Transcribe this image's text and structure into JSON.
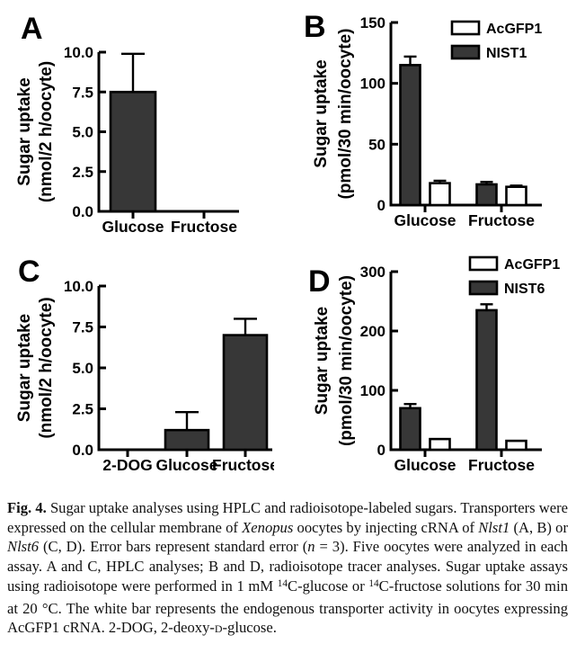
{
  "colors": {
    "bar_dark": "#373737",
    "bar_white": "#ffffff",
    "ink": "#000000"
  },
  "chart_data": [
    {
      "panel": "A",
      "type": "bar",
      "ylabel": [
        "Sugar uptake",
        "(nmol/2 h/oocyte)"
      ],
      "ylim": [
        0,
        10
      ],
      "yticks": [
        {
          "v": 0,
          "label": "0.0"
        },
        {
          "v": 2.5,
          "label": "2.5"
        },
        {
          "v": 5,
          "label": "5.0"
        },
        {
          "v": 7.5,
          "label": "7.5"
        },
        {
          "v": 10,
          "label": "10.0"
        }
      ],
      "categories": [
        "Glucose",
        "Fructose"
      ],
      "series": [
        {
          "name": "",
          "fill": "dark",
          "values": [
            7.5,
            0
          ],
          "errors": [
            2.4,
            0
          ]
        }
      ],
      "legend": null
    },
    {
      "panel": "B",
      "type": "bar",
      "ylabel": [
        "Sugar uptake",
        "(pmol/30 min/oocyte)"
      ],
      "ylim": [
        0,
        150
      ],
      "yticks": [
        {
          "v": 0,
          "label": "0"
        },
        {
          "v": 50,
          "label": "50"
        },
        {
          "v": 100,
          "label": "100"
        },
        {
          "v": 150,
          "label": "150"
        }
      ],
      "categories": [
        "Glucose",
        "Fructose"
      ],
      "series": [
        {
          "name": "NIST1",
          "fill": "dark",
          "values": [
            115,
            17
          ],
          "errors": [
            7,
            2
          ]
        },
        {
          "name": "AcGFP1",
          "fill": "white",
          "values": [
            18,
            15
          ],
          "errors": [
            2,
            1
          ]
        }
      ],
      "legend": [
        {
          "label": "AcGFP1",
          "fill": "white"
        },
        {
          "label": "NIST1",
          "fill": "dark"
        }
      ]
    },
    {
      "panel": "C",
      "type": "bar",
      "ylabel": [
        "Sugar uptake",
        "(nmol/2 h/oocyte)"
      ],
      "ylim": [
        0,
        10
      ],
      "yticks": [
        {
          "v": 0,
          "label": "0.0"
        },
        {
          "v": 2.5,
          "label": "2.5"
        },
        {
          "v": 5,
          "label": "5.0"
        },
        {
          "v": 7.5,
          "label": "7.5"
        },
        {
          "v": 10,
          "label": "10.0"
        }
      ],
      "categories": [
        "2-DOG",
        "Glucose",
        "Fructose"
      ],
      "series": [
        {
          "name": "",
          "fill": "dark",
          "values": [
            0,
            1.2,
            7.0
          ],
          "errors": [
            0,
            1.1,
            1.0
          ]
        }
      ],
      "legend": null
    },
    {
      "panel": "D",
      "type": "bar",
      "ylabel": [
        "Sugar uptake",
        "(pmol/30 min/oocyte)"
      ],
      "ylim": [
        0,
        300
      ],
      "yticks": [
        {
          "v": 0,
          "label": "0"
        },
        {
          "v": 100,
          "label": "100"
        },
        {
          "v": 200,
          "label": "200"
        },
        {
          "v": 300,
          "label": "300"
        }
      ],
      "categories": [
        "Glucose",
        "Fructose"
      ],
      "series": [
        {
          "name": "NIST6",
          "fill": "dark",
          "values": [
            70,
            235
          ],
          "errors": [
            7,
            10
          ]
        },
        {
          "name": "AcGFP1",
          "fill": "white",
          "values": [
            18,
            15
          ],
          "errors": [
            0,
            0
          ]
        }
      ],
      "legend": [
        {
          "label": "AcGFP1",
          "fill": "white"
        },
        {
          "label": "NIST6",
          "fill": "dark"
        }
      ]
    }
  ],
  "caption": {
    "segments": [
      {
        "text": "Fig. 4.",
        "style": "b"
      },
      {
        "text": " Sugar uptake analyses using HPLC and radioisotope-labeled sugars. Transporters were expressed on the cellular membrane of ",
        "style": ""
      },
      {
        "text": "Xenopus",
        "style": "i"
      },
      {
        "text": " oocytes by injecting cRNA of ",
        "style": ""
      },
      {
        "text": "Nlst1",
        "style": "i"
      },
      {
        "text": " (A, B) or ",
        "style": ""
      },
      {
        "text": "Nlst6",
        "style": "i"
      },
      {
        "text": " (C, D). Error bars represent standard error (",
        "style": ""
      },
      {
        "text": "n",
        "style": "i"
      },
      {
        "text": " = 3). Five oocytes were analyzed in each assay. A and C, HPLC analyses; B and D, radioisotope tracer analyses. Sugar uptake assays using radioisotope were performed in 1 mM ",
        "style": ""
      },
      {
        "text": "14",
        "style": "sup"
      },
      {
        "text": "C-glucose or ",
        "style": ""
      },
      {
        "text": "14",
        "style": "sup"
      },
      {
        "text": "C-fructose solutions for 30 min at 20 °C. The white bar represents the endogenous transporter activity in oocytes expressing AcGFP1 cRNA. 2-DOG, 2-deoxy-",
        "style": ""
      },
      {
        "text": "d",
        "style": "sc"
      },
      {
        "text": "-glucose.",
        "style": ""
      }
    ]
  }
}
